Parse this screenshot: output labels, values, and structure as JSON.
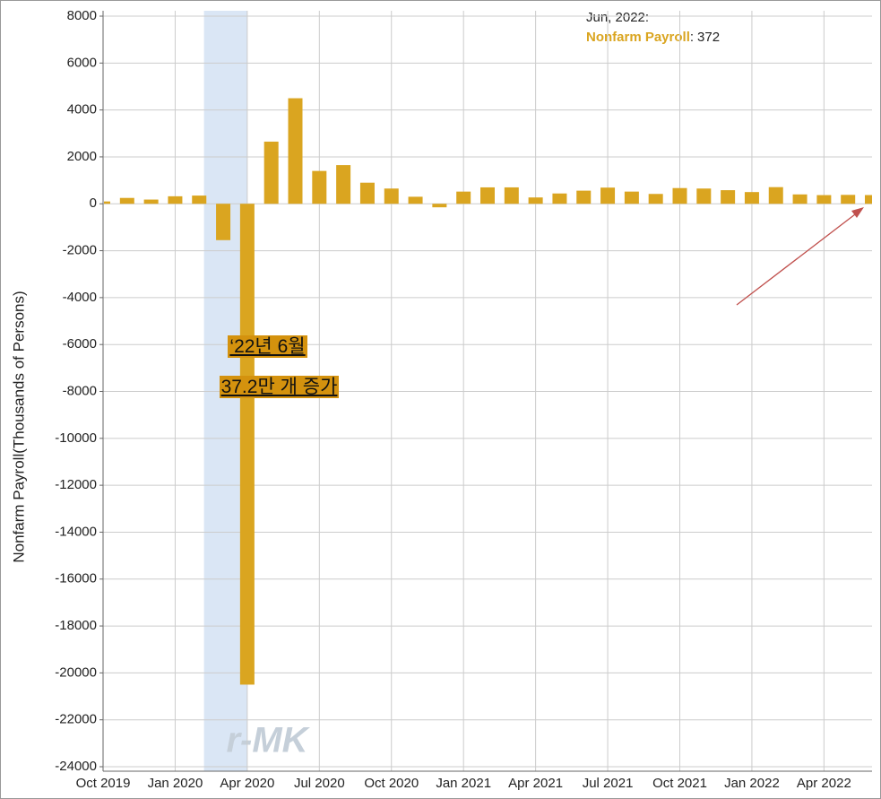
{
  "chart_data": {
    "type": "bar",
    "y_axis_label": "Nonfarm Payroll(Thousands of Persons)",
    "categories": [
      "Oct 2019",
      null,
      null,
      "Jan 2020",
      null,
      null,
      "Apr 2020",
      null,
      null,
      "Jul 2020",
      null,
      null,
      "Oct 2020",
      null,
      null,
      "Jan 2021",
      null,
      null,
      "Apr 2021",
      null,
      null,
      "Jul 2021",
      null,
      null,
      "Oct 2021",
      null,
      null,
      "Jan 2022",
      null,
      null,
      "Apr 2022",
      null,
      null
    ],
    "series": [
      {
        "name": "Nonfarm Payroll",
        "color": "#daa520",
        "values": [
          100,
          250,
          180,
          320,
          350,
          -1550,
          -20500,
          2650,
          4500,
          1400,
          1650,
          900,
          650,
          300,
          -150,
          520,
          700,
          700,
          270,
          440,
          560,
          690,
          520,
          420,
          670,
          650,
          580,
          500,
          710,
          400,
          370,
          380,
          372
        ]
      }
    ],
    "ylim": [
      -24000,
      8000
    ],
    "yticks": [
      -24000,
      -22000,
      -20000,
      -18000,
      -16000,
      -14000,
      -12000,
      -10000,
      -8000,
      -6000,
      -4000,
      -2000,
      0,
      2000,
      4000,
      6000,
      8000
    ],
    "grid": true,
    "tooltip": {
      "header": "Jun, 2022:",
      "separator": ":"
    },
    "annotations": [
      "‘22년 6월",
      "37.2만 개 증가"
    ],
    "watermark": "r-MK"
  }
}
